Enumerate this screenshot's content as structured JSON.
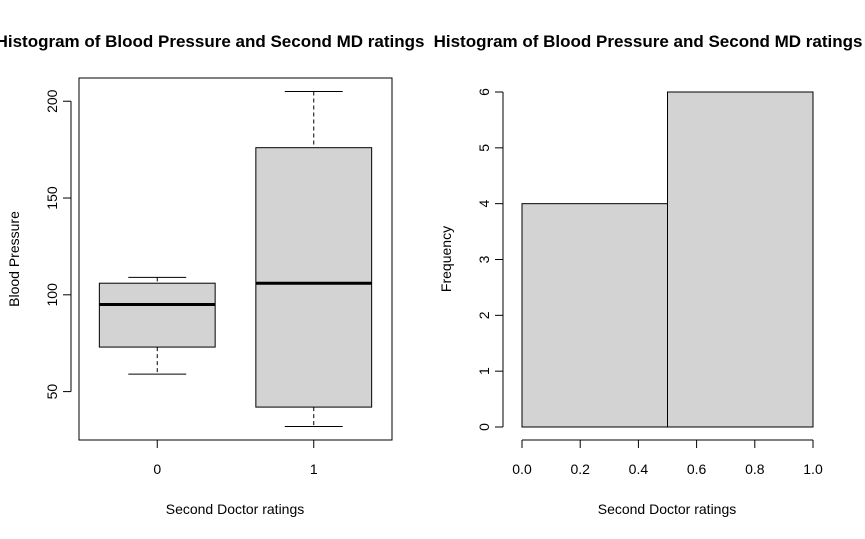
{
  "chart_data": [
    {
      "type": "boxplot",
      "title": "Histogram of Blood Pressure and Second MD ratings",
      "xlabel": "Second Doctor ratings",
      "ylabel": "Blood Pressure",
      "ylim": [
        25,
        212
      ],
      "y_ticks": [
        "50",
        "100",
        "150",
        "200"
      ],
      "categories": [
        "0",
        "1"
      ],
      "boxes": [
        {
          "min": 59,
          "q1": 73,
          "median": 95,
          "q3": 106,
          "max": 109
        },
        {
          "min": 32,
          "q1": 42,
          "median": 106,
          "q3": 176,
          "max": 205
        }
      ],
      "box_color": "#d3d3d3"
    },
    {
      "type": "bar",
      "title": "Histogram of Blood Pressure and Second MD ratings",
      "xlabel": "Second Doctor ratings",
      "ylabel": "Frequency",
      "xlim": [
        0,
        1
      ],
      "ylim": [
        0,
        6
      ],
      "x_ticks": [
        "0.0",
        "0.2",
        "0.4",
        "0.6",
        "0.8",
        "1.0"
      ],
      "y_ticks": [
        "0",
        "1",
        "2",
        "3",
        "4",
        "5",
        "6"
      ],
      "bins": [
        {
          "from": 0,
          "to": 0.5,
          "count": 4
        },
        {
          "from": 0.5,
          "to": 1,
          "count": 6
        }
      ],
      "bar_color": "#d3d3d3"
    }
  ]
}
